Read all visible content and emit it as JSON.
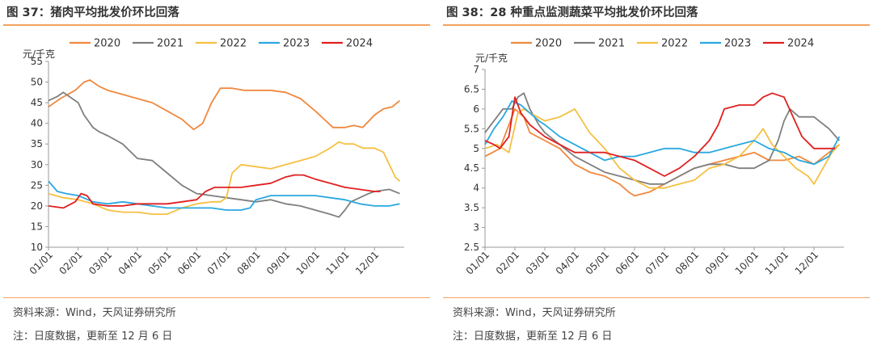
{
  "panels": [
    {
      "title": "图 37：猪肉平均批发价环比回落",
      "source": "资料来源：Wind，天风证券研究所",
      "note": "注：日度数据，更新至 12 月 6 日"
    },
    {
      "title": "图 38：28 种重点监测蔬菜平均批发价环比回落",
      "source": "资料来源：Wind，天风证券研究所",
      "note": "注：日度数据，更新至 12 月 6 日"
    }
  ],
  "chart_data": [
    {
      "type": "line",
      "title": "图 37：猪肉平均批发价环比回落",
      "ylabel": "元/千克",
      "ylim": [
        10,
        55
      ],
      "yticks": [
        10,
        15,
        20,
        25,
        30,
        35,
        40,
        45,
        50,
        55
      ],
      "xticks": [
        "01/01",
        "02/01",
        "03/01",
        "04/01",
        "05/01",
        "06/01",
        "07/01",
        "08/01",
        "09/01",
        "10/01",
        "11/01",
        "12/01"
      ],
      "x_unit": "month (Jan 1 = 0)",
      "legend_position": "top",
      "series": [
        {
          "name": "2020",
          "color": "#f0883e",
          "x": [
            0,
            0.4,
            0.9,
            1.2,
            1.4,
            1.7,
            2.0,
            2.5,
            3.0,
            3.5,
            4.0,
            4.5,
            4.9,
            5.2,
            5.5,
            5.8,
            6.2,
            6.6,
            7.0,
            7.5,
            8.0,
            8.5,
            9.0,
            9.3,
            9.6,
            10.0,
            10.3,
            10.6,
            11.0,
            11.3,
            11.6,
            11.85
          ],
          "y": [
            44,
            46,
            48,
            50,
            50.5,
            49,
            48,
            47,
            46,
            45,
            43,
            41,
            38.5,
            40,
            45,
            48.5,
            48.5,
            48,
            48,
            48,
            47.5,
            46,
            43,
            41,
            39,
            39,
            39.5,
            39,
            42,
            43.5,
            44,
            45.5
          ]
        },
        {
          "name": "2021",
          "color": "#7f7f7f",
          "x": [
            0,
            0.3,
            0.5,
            0.8,
            1.0,
            1.2,
            1.5,
            1.7,
            2.0,
            2.5,
            3.0,
            3.5,
            4.0,
            4.5,
            5.0,
            5.5,
            6.0,
            6.5,
            7.0,
            7.5,
            8.0,
            8.5,
            9.0,
            9.5,
            9.8,
            10.0,
            10.2,
            10.5,
            10.8,
            11.0,
            11.5,
            11.85
          ],
          "y": [
            45.5,
            46.5,
            47.5,
            46,
            45,
            42,
            39,
            38,
            37,
            35,
            31.5,
            31,
            28,
            25,
            23,
            22.5,
            22,
            21.5,
            21,
            21.5,
            20.5,
            20,
            19,
            18,
            17.3,
            19,
            21,
            22,
            23,
            23.5,
            24,
            23
          ]
        },
        {
          "name": "2022",
          "color": "#f5c042",
          "x": [
            0,
            0.5,
            1.0,
            1.5,
            2.0,
            2.5,
            3.0,
            3.5,
            4.0,
            4.5,
            5.0,
            5.5,
            5.8,
            6.0,
            6.2,
            6.5,
            7.0,
            7.5,
            8.0,
            8.5,
            9.0,
            9.5,
            9.8,
            10.0,
            10.3,
            10.6,
            11.0,
            11.3,
            11.5,
            11.7,
            11.85
          ],
          "y": [
            23,
            22,
            21.5,
            20.5,
            19,
            18.5,
            18.5,
            18,
            18,
            19.5,
            20.5,
            21,
            21,
            22,
            28,
            30,
            29.5,
            29,
            30,
            31,
            32,
            34,
            35.5,
            35,
            35,
            34,
            34,
            33,
            30,
            27,
            26
          ]
        },
        {
          "name": "2023",
          "color": "#29a8e0",
          "x": [
            0,
            0.3,
            0.6,
            1.0,
            1.5,
            2.0,
            2.5,
            3.0,
            3.5,
            4.0,
            4.5,
            5.0,
            5.5,
            6.0,
            6.5,
            6.8,
            7.0,
            7.5,
            8.0,
            8.5,
            9.0,
            9.5,
            10.0,
            10.5,
            11.0,
            11.5,
            11.85
          ],
          "y": [
            26,
            23.5,
            23,
            22.5,
            21,
            20.5,
            21,
            20.5,
            20,
            19.5,
            19.5,
            19.5,
            19.5,
            19,
            19,
            19.5,
            21.5,
            22.5,
            22.5,
            22.5,
            22.5,
            22,
            21.5,
            20.5,
            20,
            20,
            20.5
          ]
        },
        {
          "name": "2024",
          "color": "#e02020",
          "x": [
            0,
            0.5,
            0.9,
            1.1,
            1.3,
            1.5,
            2.0,
            2.5,
            3.0,
            3.5,
            4.0,
            4.5,
            5.0,
            5.3,
            5.6,
            6.0,
            6.5,
            7.0,
            7.5,
            8.0,
            8.3,
            8.6,
            9.0,
            9.5,
            10.0,
            10.5,
            11.0,
            11.2
          ],
          "y": [
            20,
            19.5,
            21,
            23,
            22.5,
            20.5,
            20,
            20,
            20.5,
            20.5,
            20.5,
            21,
            21.5,
            23.5,
            24.5,
            24.5,
            24.5,
            25,
            25.5,
            27,
            27.5,
            27.5,
            26.5,
            25.5,
            24.5,
            24,
            23.5,
            23.5
          ]
        }
      ]
    },
    {
      "type": "line",
      "title": "图 38：28 种重点监测蔬菜平均批发价环比回落",
      "ylabel": "元/千克",
      "ylim": [
        2.5,
        7
      ],
      "yticks": [
        2.5,
        3,
        3.5,
        4,
        4.5,
        5,
        5.5,
        6,
        6.5,
        7
      ],
      "xticks": [
        "01/01",
        "02/01",
        "03/01",
        "04/01",
        "05/01",
        "06/01",
        "07/01",
        "08/01",
        "09/01",
        "10/01",
        "11/01",
        "12/01"
      ],
      "x_unit": "month (Jan 1 = 0)",
      "legend_position": "top",
      "series": [
        {
          "name": "2020",
          "color": "#f0883e",
          "x": [
            0,
            0.5,
            0.8,
            1.0,
            1.3,
            1.5,
            2.0,
            2.5,
            3.0,
            3.5,
            4.0,
            4.5,
            4.8,
            5.0,
            5.5,
            6.0,
            6.5,
            7.0,
            7.5,
            8.0,
            8.5,
            9.0,
            9.5,
            10.0,
            10.5,
            11.0,
            11.5,
            11.85
          ],
          "y": [
            4.8,
            5.0,
            5.6,
            6.0,
            5.8,
            5.4,
            5.2,
            5.0,
            4.6,
            4.4,
            4.3,
            4.1,
            3.9,
            3.8,
            3.9,
            4.1,
            4.3,
            4.5,
            4.6,
            4.7,
            4.8,
            4.9,
            4.7,
            4.7,
            4.8,
            4.6,
            4.9,
            5.1
          ]
        },
        {
          "name": "2021",
          "color": "#7f7f7f",
          "x": [
            0,
            0.3,
            0.6,
            0.9,
            1.1,
            1.3,
            1.5,
            1.8,
            2.0,
            2.5,
            3.0,
            3.5,
            4.0,
            4.5,
            5.0,
            5.5,
            6.0,
            6.5,
            7.0,
            7.5,
            8.0,
            8.5,
            9.0,
            9.5,
            9.8,
            10.0,
            10.2,
            10.5,
            11.0,
            11.5,
            11.85
          ],
          "y": [
            5.4,
            5.7,
            6.0,
            6.0,
            6.3,
            6.4,
            6.0,
            5.6,
            5.4,
            5.1,
            4.8,
            4.6,
            4.4,
            4.3,
            4.2,
            4.1,
            4.1,
            4.3,
            4.5,
            4.6,
            4.6,
            4.5,
            4.5,
            4.7,
            5.2,
            5.7,
            6.0,
            5.8,
            5.8,
            5.5,
            5.2
          ]
        },
        {
          "name": "2022",
          "color": "#f5c042",
          "x": [
            0,
            0.4,
            0.8,
            1.1,
            1.3,
            1.5,
            2.0,
            2.5,
            3.0,
            3.5,
            4.0,
            4.5,
            5.0,
            5.5,
            6.0,
            6.5,
            7.0,
            7.5,
            8.0,
            8.5,
            9.0,
            9.3,
            9.6,
            10.0,
            10.4,
            10.8,
            11.0,
            11.3,
            11.6,
            11.85
          ],
          "y": [
            5.0,
            5.1,
            4.9,
            5.9,
            6.0,
            5.9,
            5.7,
            5.8,
            6.0,
            5.4,
            5.0,
            4.5,
            4.2,
            4.0,
            4.0,
            4.1,
            4.2,
            4.5,
            4.6,
            4.8,
            5.2,
            5.5,
            5.1,
            4.8,
            4.5,
            4.3,
            4.1,
            4.5,
            4.9,
            5.1
          ]
        },
        {
          "name": "2023",
          "color": "#29a8e0",
          "x": [
            0,
            0.3,
            0.6,
            0.9,
            1.2,
            1.5,
            1.8,
            2.0,
            2.5,
            3.0,
            3.5,
            4.0,
            4.5,
            5.0,
            5.5,
            6.0,
            6.5,
            7.0,
            7.5,
            8.0,
            8.5,
            9.0,
            9.5,
            10.0,
            10.5,
            11.0,
            11.5,
            11.85
          ],
          "y": [
            5.1,
            5.5,
            5.8,
            6.2,
            6.1,
            5.9,
            5.7,
            5.6,
            5.3,
            5.1,
            4.9,
            4.7,
            4.8,
            4.8,
            4.9,
            5.0,
            5.0,
            4.9,
            4.9,
            5.0,
            5.1,
            5.2,
            5.0,
            4.9,
            4.7,
            4.6,
            4.8,
            5.3
          ]
        },
        {
          "name": "2024",
          "color": "#e02020",
          "x": [
            0,
            0.3,
            0.5,
            0.8,
            1.0,
            1.2,
            1.5,
            2.0,
            2.5,
            3.0,
            3.5,
            4.0,
            4.5,
            5.0,
            5.5,
            6.0,
            6.5,
            7.0,
            7.5,
            7.8,
            8.0,
            8.5,
            9.0,
            9.3,
            9.6,
            10.0,
            10.3,
            10.6,
            11.0,
            11.3,
            11.5,
            11.7
          ],
          "y": [
            5.2,
            5.1,
            5.0,
            5.3,
            6.3,
            5.9,
            5.6,
            5.3,
            5.1,
            4.9,
            4.9,
            4.9,
            4.8,
            4.7,
            4.5,
            4.3,
            4.5,
            4.8,
            5.2,
            5.6,
            6.0,
            6.1,
            6.1,
            6.3,
            6.4,
            6.3,
            5.8,
            5.3,
            5.0,
            5.0,
            5.0,
            5.0
          ]
        }
      ]
    }
  ]
}
